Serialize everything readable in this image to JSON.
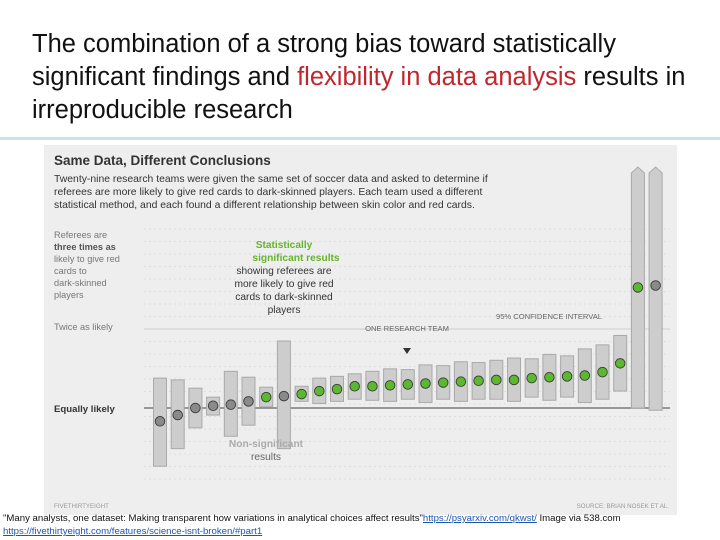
{
  "slide": {
    "title_part1": "The combination of a strong bias toward statistically significant findings and ",
    "title_highlight": "flexibility in data analysis",
    "title_part2": " results in irreproducible research",
    "highlight_color": "#c0272d"
  },
  "caption": {
    "text1": "\"Many analysts, one dataset: Making transparent how variations in analytical choices affect results\"",
    "link1": "https://psyarxiv.com/qkwst/",
    "text2": " Image via 538.com ",
    "link2": "https://fivethirtyeight.com/features/science-isnt-broken/#part1"
  },
  "chart_data": {
    "type": "scatter",
    "title": "Same Data, Different Conclusions",
    "subtitle_lines": [
      "Twenty-nine research teams were given the same set of soccer data and asked to determine if",
      "referees are more likely to give red cards to dark-skinned players. Each team used a different",
      "statistical method, and each found a different relationship between skin color and red cards."
    ],
    "y_labels": {
      "three_times": [
        "Referees are",
        "three times as",
        "likely to give red",
        "cards to",
        "dark-skinned",
        "players"
      ],
      "twice": "Twice as likely",
      "equal": "Equally likely"
    },
    "annotations": {
      "significant_lines": [
        "Statistically",
        "significant results",
        "showing referees are",
        "more likely to give red",
        "cards to dark-skinned",
        "players"
      ],
      "nonsignificant_lines": [
        "Non-significant",
        "results"
      ],
      "one_team": "ONE RESEARCH TEAM",
      "ci": "95% CONFIDENCE INTERVAL"
    },
    "footer": {
      "brand": "FIVETHIRTYEIGHT",
      "source": "SOURCE: BRIAN NOSEK ET AL."
    },
    "y_scale": "log",
    "y_reference_values": [
      1,
      2,
      3
    ],
    "teams": [
      {
        "estimate": 0.89,
        "lower": 0.6,
        "upper": 1.3,
        "significant": false
      },
      {
        "estimate": 0.94,
        "lower": 0.7,
        "upper": 1.28,
        "significant": false
      },
      {
        "estimate": 1.0,
        "lower": 0.84,
        "upper": 1.19,
        "significant": false
      },
      {
        "estimate": 1.02,
        "lower": 0.94,
        "upper": 1.1,
        "significant": false
      },
      {
        "estimate": 1.03,
        "lower": 0.78,
        "upper": 1.38,
        "significant": false
      },
      {
        "estimate": 1.06,
        "lower": 0.86,
        "upper": 1.31,
        "significant": false
      },
      {
        "estimate": 1.1,
        "lower": 1.01,
        "upper": 1.2,
        "significant": true
      },
      {
        "estimate": 1.11,
        "lower": 0.7,
        "upper": 1.8,
        "significant": false
      },
      {
        "estimate": 1.13,
        "lower": 1.06,
        "upper": 1.21,
        "significant": true
      },
      {
        "estimate": 1.16,
        "lower": 1.04,
        "upper": 1.3,
        "significant": true
      },
      {
        "estimate": 1.18,
        "lower": 1.06,
        "upper": 1.32,
        "significant": true
      },
      {
        "estimate": 1.21,
        "lower": 1.08,
        "upper": 1.35,
        "significant": true
      },
      {
        "estimate": 1.21,
        "lower": 1.07,
        "upper": 1.38,
        "significant": true
      },
      {
        "estimate": 1.22,
        "lower": 1.06,
        "upper": 1.41,
        "significant": true
      },
      {
        "estimate": 1.23,
        "lower": 1.08,
        "upper": 1.4,
        "significant": true
      },
      {
        "estimate": 1.24,
        "lower": 1.05,
        "upper": 1.46,
        "significant": true
      },
      {
        "estimate": 1.25,
        "lower": 1.08,
        "upper": 1.45,
        "significant": true
      },
      {
        "estimate": 1.26,
        "lower": 1.06,
        "upper": 1.5,
        "significant": true
      },
      {
        "estimate": 1.27,
        "lower": 1.08,
        "upper": 1.49,
        "significant": true
      },
      {
        "estimate": 1.28,
        "lower": 1.08,
        "upper": 1.52,
        "significant": true
      },
      {
        "estimate": 1.28,
        "lower": 1.06,
        "upper": 1.55,
        "significant": true
      },
      {
        "estimate": 1.3,
        "lower": 1.1,
        "upper": 1.54,
        "significant": true
      },
      {
        "estimate": 1.31,
        "lower": 1.07,
        "upper": 1.6,
        "significant": true
      },
      {
        "estimate": 1.32,
        "lower": 1.1,
        "upper": 1.58,
        "significant": true
      },
      {
        "estimate": 1.33,
        "lower": 1.05,
        "upper": 1.68,
        "significant": true
      },
      {
        "estimate": 1.37,
        "lower": 1.08,
        "upper": 1.74,
        "significant": true
      },
      {
        "estimate": 1.48,
        "lower": 1.16,
        "upper": 1.89,
        "significant": true
      },
      {
        "estimate": 2.88,
        "lower": 1.0,
        "upper": 20.0,
        "significant": true
      },
      {
        "estimate": 2.93,
        "lower": 0.98,
        "upper": 20.0,
        "significant": false
      }
    ],
    "colors": {
      "significant": "#5cb82e",
      "nonsignificant": "#8a8a8a",
      "highlight_text": "#65b32e",
      "bar": "#cdcdcd",
      "bar_edge": "#a9a9a9"
    }
  }
}
